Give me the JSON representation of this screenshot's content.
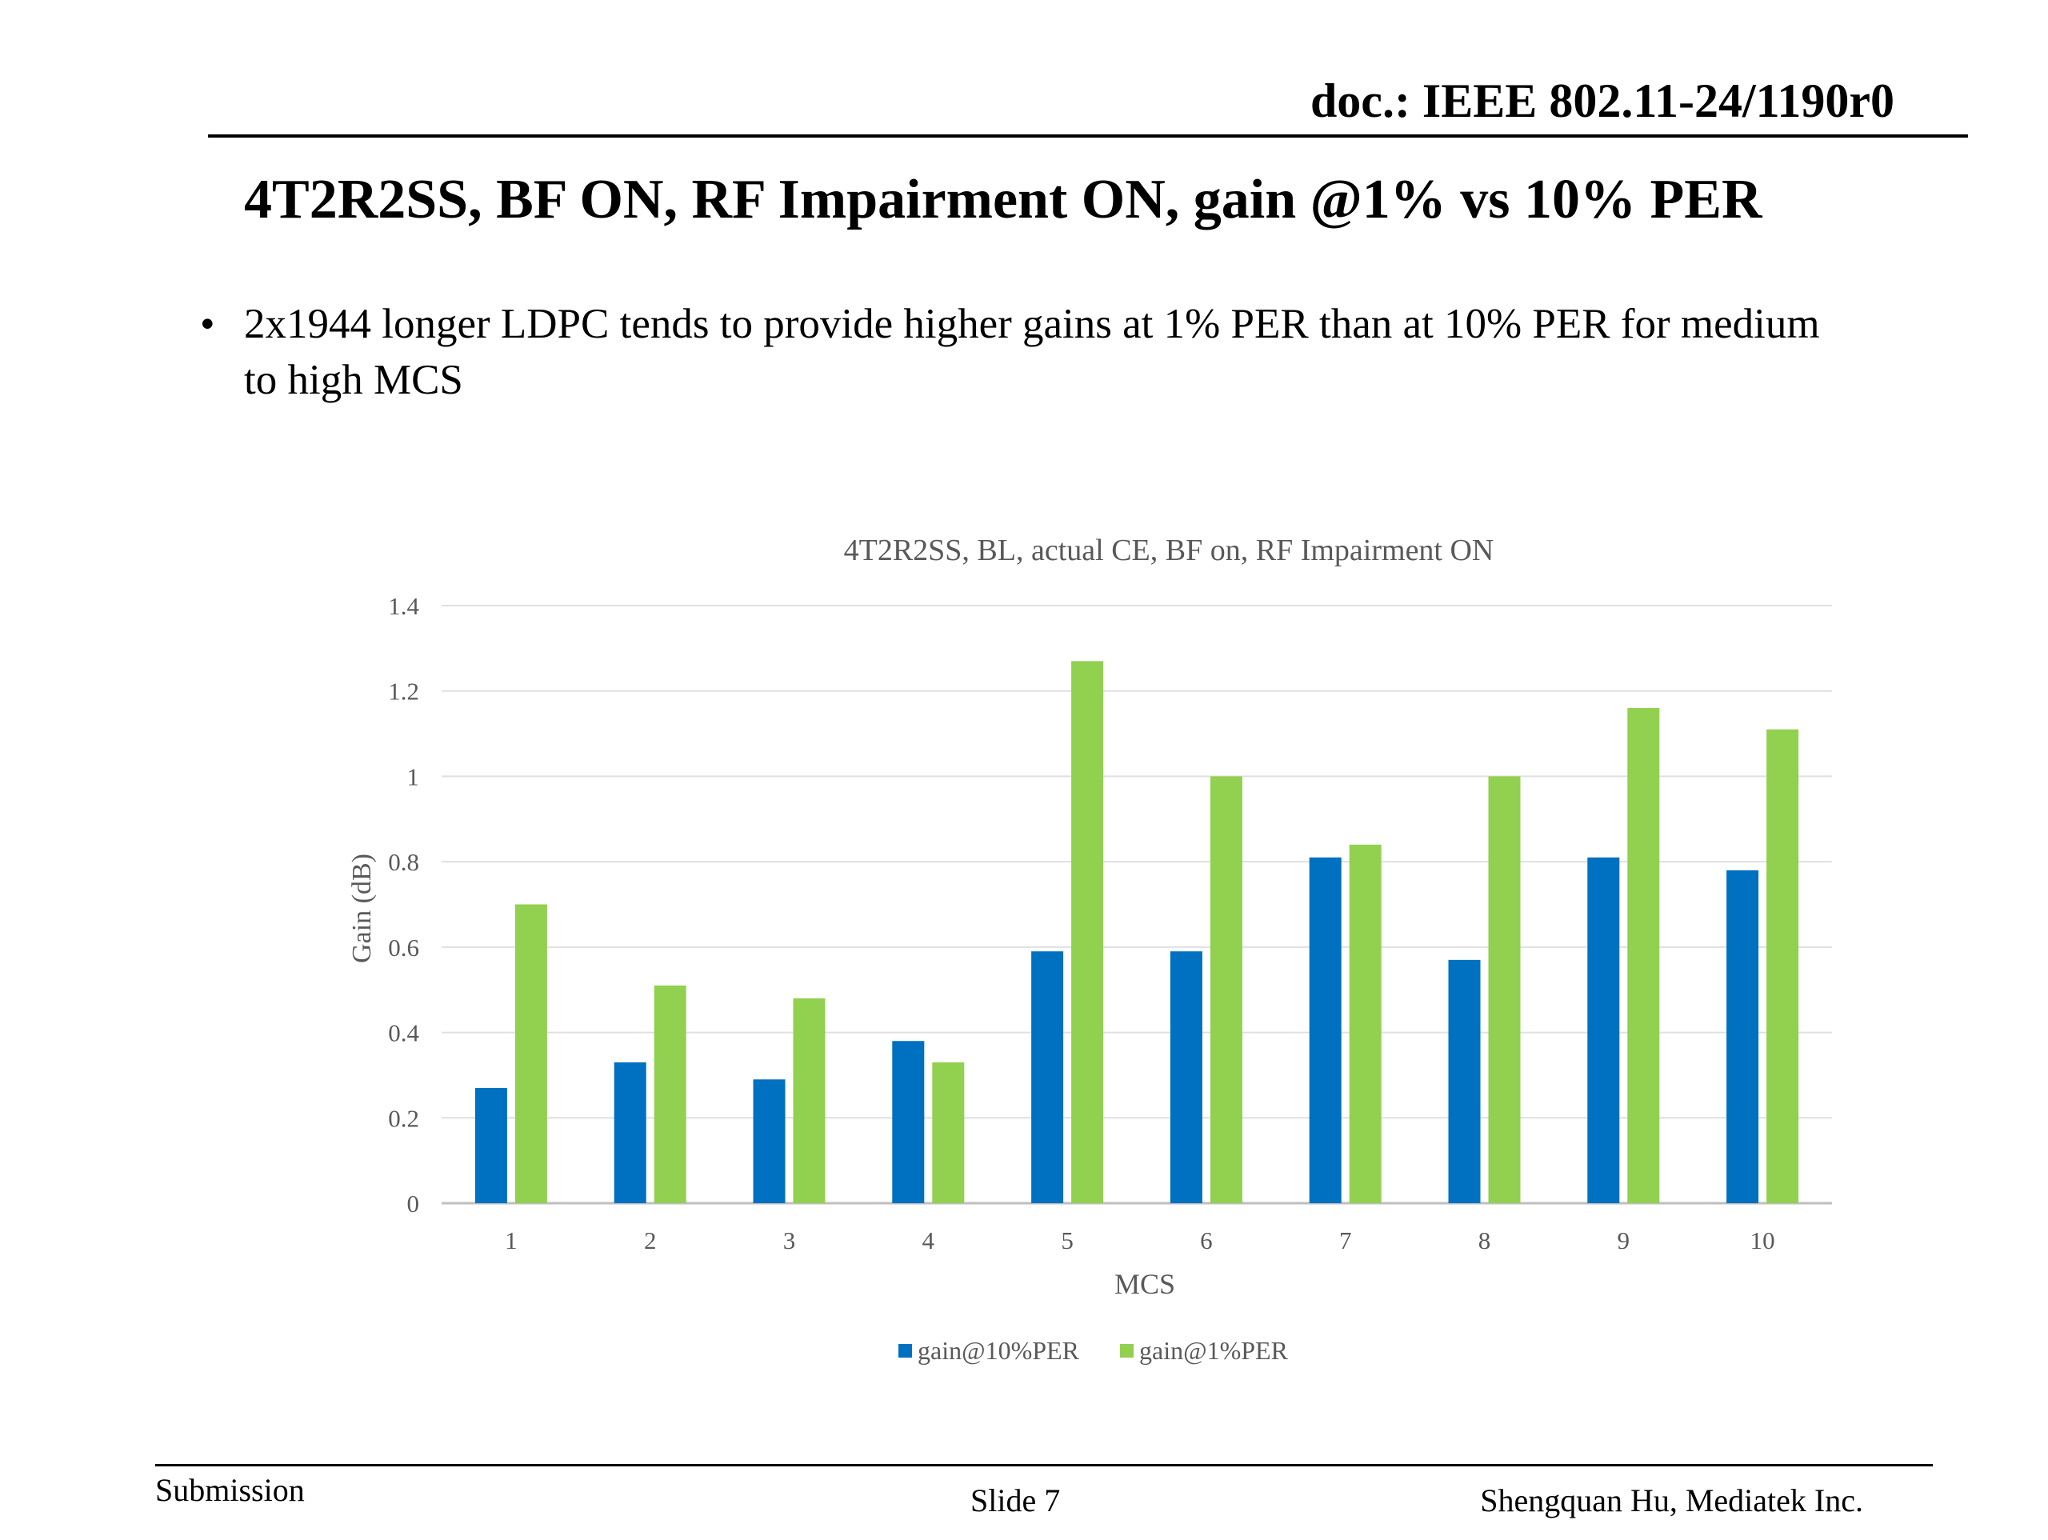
{
  "header": {
    "doc_id": "doc.: IEEE 802.11-24/1190r0"
  },
  "slide": {
    "title": "4T2R2SS, BF ON, RF Impairment ON, gain @1% vs 10% PER",
    "bullets": [
      "2x1944 longer LDPC tends to provide higher gains at 1% PER than at 10% PER for medium to high MCS"
    ]
  },
  "chart_data": {
    "type": "bar",
    "title": "4T2R2SS, BL, actual CE, BF on, RF Impairment ON",
    "xlabel": "MCS",
    "ylabel": "Gain (dB)",
    "categories": [
      "1",
      "2",
      "3",
      "4",
      "5",
      "6",
      "7",
      "8",
      "9",
      "10"
    ],
    "series": [
      {
        "name": "gain@10%PER",
        "color": "#0070c0",
        "values": [
          0.27,
          0.33,
          0.29,
          0.38,
          0.59,
          0.59,
          0.81,
          0.57,
          0.81,
          0.78
        ]
      },
      {
        "name": "gain@1%PER",
        "color": "#92d050",
        "values": [
          0.7,
          0.51,
          0.48,
          0.33,
          1.27,
          1.0,
          0.84,
          1.0,
          1.16,
          1.11
        ]
      }
    ],
    "ylim": [
      0,
      1.4
    ],
    "yticks": [
      "0",
      "0.2",
      "0.4",
      "0.6",
      "0.8",
      "1",
      "1.2",
      "1.4"
    ],
    "grid": true,
    "legend": "bottom"
  },
  "footer": {
    "left": "Submission",
    "center": "Slide 7",
    "right": "Shengquan Hu, Mediatek Inc."
  }
}
